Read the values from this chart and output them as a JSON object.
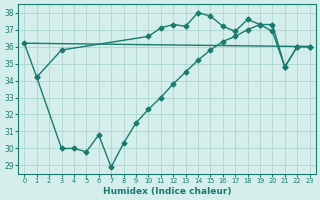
{
  "line1_x": [
    0,
    1,
    3,
    10,
    11,
    12,
    13,
    14,
    15,
    16,
    17,
    18,
    19,
    20,
    21,
    22,
    23
  ],
  "line1_y": [
    36.2,
    34.2,
    35.8,
    36.6,
    37.1,
    37.3,
    37.2,
    38.0,
    37.8,
    37.2,
    36.9,
    37.6,
    37.3,
    37.3,
    34.8,
    36.0,
    36.0
  ],
  "line2_x": [
    0,
    23
  ],
  "line2_y": [
    36.2,
    36.0
  ],
  "line3_x": [
    1,
    3,
    4,
    5,
    6,
    7,
    8,
    9,
    10,
    11,
    12,
    13,
    14,
    15,
    16,
    17,
    18,
    19,
    20,
    21,
    22,
    23
  ],
  "line3_y": [
    34.2,
    30.0,
    30.0,
    29.8,
    30.8,
    28.9,
    30.3,
    31.5,
    32.3,
    33.0,
    33.8,
    34.5,
    35.2,
    35.8,
    36.3,
    36.6,
    37.0,
    37.3,
    36.9,
    34.8,
    36.0,
    36.0
  ],
  "line_color": "#1a7a6e",
  "bg_color": "#d4eeeb",
  "grid_color": "#a8cfc9",
  "xlabel": "Humidex (Indice chaleur)",
  "xlim": [
    -0.5,
    23.5
  ],
  "ylim": [
    28.5,
    38.5
  ],
  "yticks": [
    29,
    30,
    31,
    32,
    33,
    34,
    35,
    36,
    37,
    38
  ],
  "xticks": [
    0,
    1,
    2,
    3,
    4,
    5,
    6,
    7,
    8,
    9,
    10,
    11,
    12,
    13,
    14,
    15,
    16,
    17,
    18,
    19,
    20,
    21,
    22,
    23
  ],
  "marker": "D",
  "markersize": 2.5,
  "linewidth": 1.0
}
